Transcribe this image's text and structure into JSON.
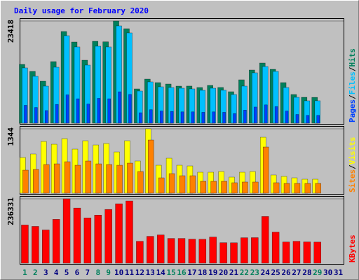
{
  "chart_data": {
    "type": "bar",
    "title": "Daily usage for February 2020",
    "legend_separator": "/",
    "categories": [
      "1",
      "2",
      "3",
      "4",
      "5",
      "6",
      "7",
      "8",
      "9",
      "10",
      "11",
      "12",
      "13",
      "14",
      "15",
      "16",
      "17",
      "18",
      "19",
      "20",
      "21",
      "22",
      "23",
      "24",
      "25",
      "26",
      "27",
      "28",
      "29",
      "30",
      "31"
    ],
    "label_color": "#000080",
    "highlight_indices": [
      0,
      1,
      7,
      8,
      14,
      15,
      21,
      22,
      28
    ],
    "highlight_color": "#00805c",
    "panels": [
      {
        "ylim": [
          0,
          23418
        ],
        "yticks": [
          23418
        ],
        "grid": true,
        "series": [
          {
            "name": "Hits",
            "color": "#00805c",
            "values": [
              13474,
              11870,
              9624,
              14115,
              21012,
              18606,
              14436,
              18767,
              18650,
              23418,
              21654,
              7860,
              10105,
              9303,
              8982,
              8501,
              8510,
              8180,
              8662,
              8190,
              7218,
              9945,
              12190,
              13794,
              12351,
              9303,
              6576,
              5935,
              5920,
              null,
              null
            ]
          },
          {
            "name": "Files",
            "color": "#00c0ff",
            "values": [
              12672,
              10747,
              8501,
              12832,
              20050,
              17484,
              13313,
              17644,
              17484,
              22296,
              20692,
              7378,
              9464,
              8341,
              8180,
              8020,
              7860,
              7539,
              8020,
              7550,
              6576,
              8501,
              11549,
              12992,
              11870,
              8180,
              5935,
              5133,
              5140,
              null,
              null
            ]
          },
          {
            "name": "Pages",
            "color": "#0040ff",
            "values": [
              4100,
              3600,
              2900,
              4300,
              6500,
              5600,
              4400,
              5700,
              5600,
              7200,
              6600,
              2400,
              3100,
              2800,
              2700,
              2600,
              2600,
              2500,
              2600,
              2500,
              2200,
              3000,
              3700,
              4200,
              3800,
              2800,
              2000,
              1800,
              1800,
              null,
              null
            ]
          }
        ]
      },
      {
        "ylim": [
          0,
          1344
        ],
        "yticks": [
          1344
        ],
        "grid": true,
        "series": [
          {
            "name": "Visits",
            "color": "#ffff00",
            "values": [
              745,
              818,
              1080,
              1022,
              1139,
              920,
              1095,
              1007,
              1037,
              861,
              1095,
              672,
              1344,
              584,
              730,
              584,
              569,
              438,
              438,
              453,
              336,
              438,
              453,
              1168,
              380,
              350,
              321,
              292,
              292,
              null,
              null
            ]
          },
          {
            "name": "Sites",
            "color": "#ff8000",
            "values": [
              482,
              496,
              599,
              613,
              657,
              584,
              672,
              613,
              599,
              584,
              628,
              453,
              1110,
              321,
              409,
              365,
              365,
              248,
              248,
              248,
              219,
              234,
              234,
              964,
              219,
              204,
              204,
              204,
              204,
              null,
              null
            ]
          }
        ]
      },
      {
        "ylim": [
          0,
          236331
        ],
        "yticks": [
          236331
        ],
        "grid": true,
        "series": [
          {
            "name": "KBytes",
            "color": "#ff0000",
            "values": [
              140238,
              135044,
              122059,
              161014,
              236331,
              202566,
              166208,
              176596,
              197372,
              218148,
              228536,
              80507,
              98686,
              103880,
              90895,
              90895,
              88298,
              88000,
              96089,
              75313,
              75000,
              93492,
              93800,
              171402,
              114268,
              77910,
              80507,
              78200,
              77500,
              null,
              null
            ]
          }
        ]
      }
    ]
  }
}
